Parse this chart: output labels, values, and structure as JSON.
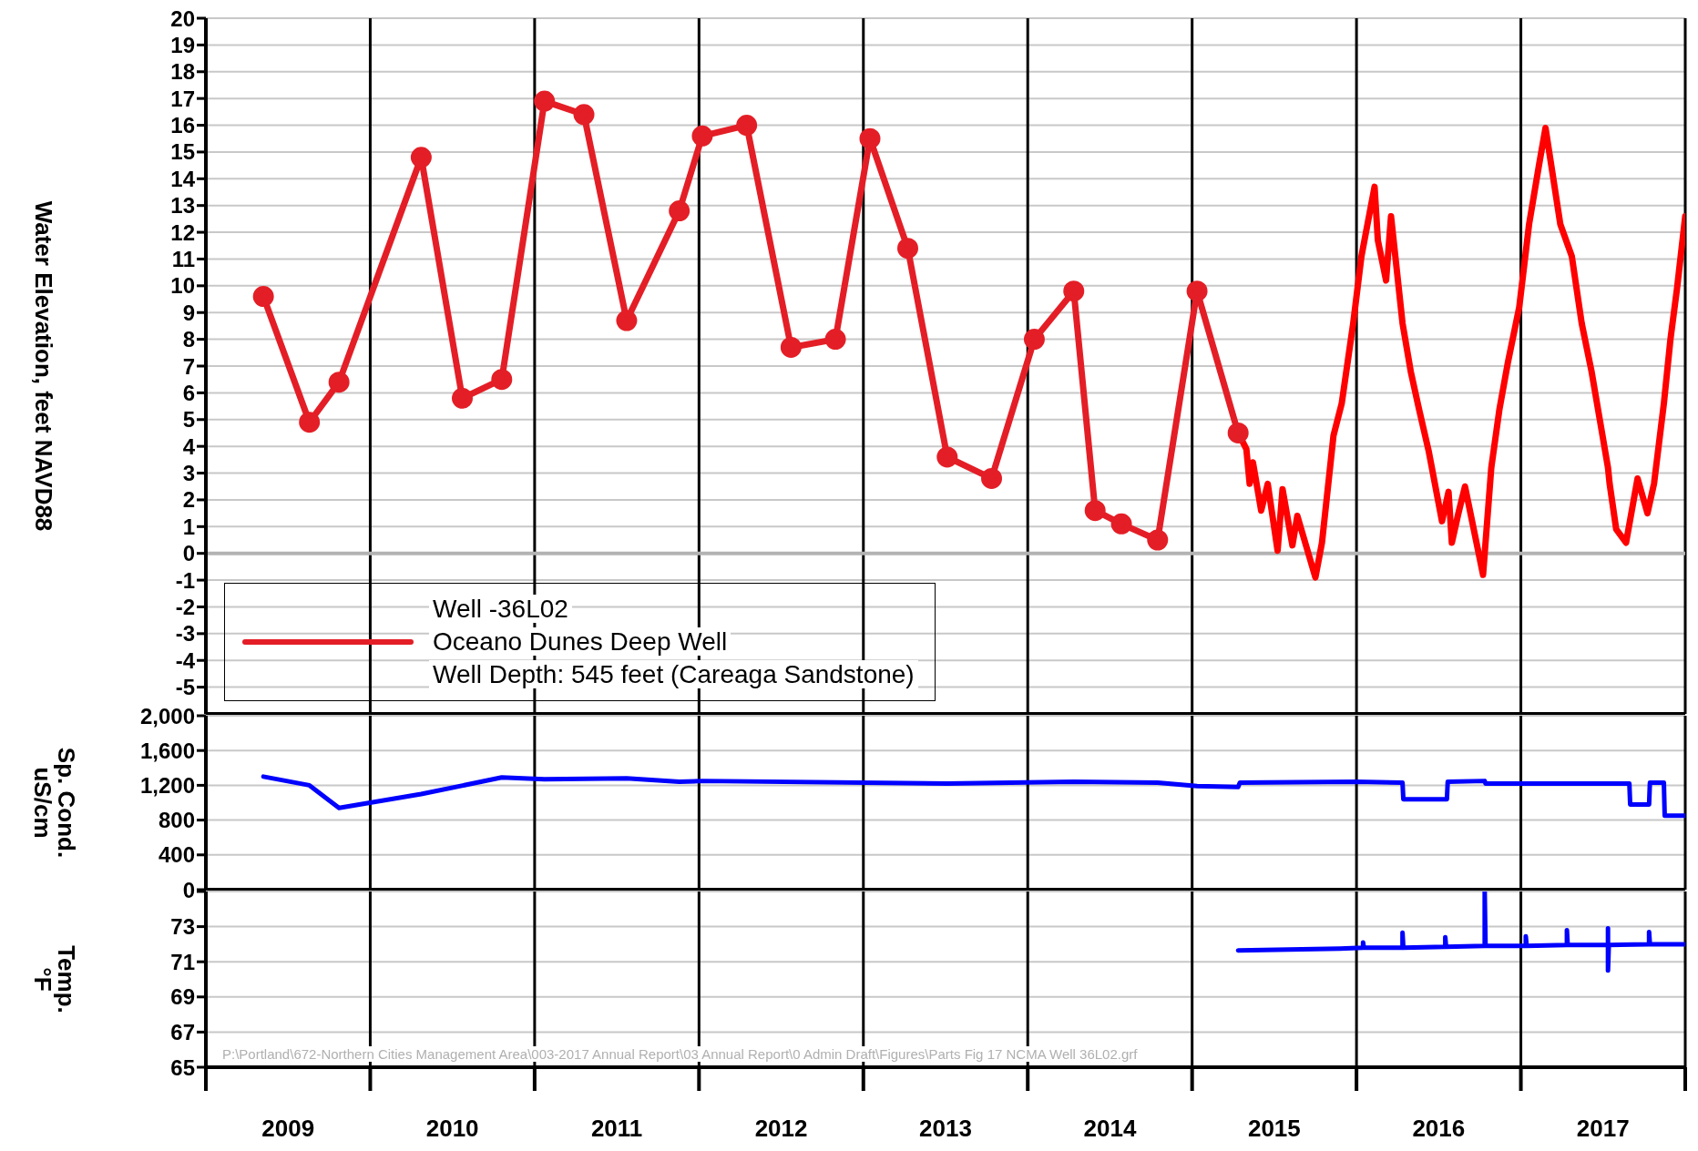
{
  "chart_data": [
    {
      "type": "line",
      "ylabel": "Water Elevation, feet NAVD88",
      "xlim": [
        2009,
        2018
      ],
      "ylim": [
        -6,
        20
      ],
      "xticks": [
        {
          "value": 2009,
          "label": null
        },
        {
          "value": 2010,
          "label": null
        },
        {
          "value": 2011,
          "label": null
        },
        {
          "value": 2012,
          "label": null
        },
        {
          "value": 2013,
          "label": null
        },
        {
          "value": 2014,
          "label": null
        },
        {
          "value": 2015,
          "label": null
        },
        {
          "value": 2016,
          "label": null
        },
        {
          "value": 2017,
          "label": null
        },
        {
          "value": 2018,
          "label": null
        }
      ],
      "yticks": [
        -5,
        -4,
        -3,
        -2,
        -1,
        0,
        1,
        2,
        3,
        4,
        5,
        6,
        7,
        8,
        9,
        10,
        11,
        12,
        13,
        14,
        15,
        16,
        17,
        18,
        19,
        20
      ],
      "grid": true,
      "tick_labels": "y",
      "legend": "bottom left",
      "ref_lines": [
        {
          "axis": "y",
          "value": 0,
          "color": "#b3b3b3"
        }
      ],
      "series": [
        {
          "name": "Well -36L02\nOceano Dunes Deep Well\nWell Depth: 545 feet (Careaga Sandstone)",
          "color": "#e41e26",
          "marker": "circle",
          "x": [
            2009.35,
            2009.63,
            2009.81,
            2010.31,
            2010.56,
            2010.8,
            2011.06,
            2011.3,
            2011.56,
            2011.88,
            2012.02,
            2012.29,
            2012.56,
            2012.83,
            2013.04,
            2013.27,
            2013.51,
            2013.78,
            2014.04,
            2014.28,
            2014.41,
            2014.57,
            2014.79,
            2015.03,
            2015.28
          ],
          "values": [
            9.6,
            4.9,
            6.4,
            14.8,
            5.8,
            6.5,
            16.9,
            16.4,
            8.7,
            12.8,
            15.6,
            16.0,
            7.7,
            8.0,
            15.5,
            11.4,
            3.6,
            2.8,
            8.0,
            9.8,
            1.6,
            1.1,
            0.5,
            9.8,
            4.5
          ]
        },
        {
          "color": "#ff0000",
          "marker": "none",
          "x": [
            2015.28,
            2015.33,
            2015.35,
            2015.37,
            2015.42,
            2015.46,
            2015.52,
            2015.55,
            2015.61,
            2015.64,
            2015.75,
            2015.79,
            2015.86,
            2015.91,
            2015.98,
            2016.03,
            2016.11,
            2016.13,
            2016.18,
            2016.21,
            2016.28,
            2016.33,
            2016.38,
            2016.44,
            2016.52,
            2016.56,
            2016.58,
            2016.62,
            2016.66,
            2016.77,
            2016.82,
            2016.87,
            2016.92,
            2016.99,
            2017.05,
            2017.11,
            2017.15,
            2017.19,
            2017.24,
            2017.31,
            2017.37,
            2017.43,
            2017.48,
            2017.53,
            2017.54,
            2017.58,
            2017.64,
            2017.71,
            2017.77,
            2017.81,
            2017.87,
            2017.91,
            2017.95,
            2018.0
          ],
          "values": [
            4.5,
            3.9,
            2.6,
            3.4,
            1.6,
            2.6,
            0.1,
            2.4,
            0.3,
            1.4,
            -0.9,
            0.4,
            4.4,
            5.6,
            8.6,
            11.1,
            13.7,
            11.7,
            10.2,
            12.6,
            8.6,
            6.8,
            5.4,
            3.8,
            1.2,
            2.3,
            0.4,
            1.5,
            2.5,
            -0.8,
            3.2,
            5.4,
            7.1,
            9.2,
            12.3,
            14.5,
            15.9,
            14.3,
            12.3,
            11.1,
            8.6,
            6.8,
            5.0,
            3.2,
            2.6,
            0.9,
            0.4,
            2.8,
            1.5,
            2.6,
            5.6,
            8.0,
            9.9,
            12.6
          ]
        }
      ]
    },
    {
      "type": "line",
      "ylabel": "Sp. Cond.\nuS/cm",
      "xlim": [
        2009,
        2018
      ],
      "ylim": [
        0,
        2000
      ],
      "xticks": [
        {
          "value": 2009,
          "label": null
        },
        {
          "value": 2010,
          "label": null
        },
        {
          "value": 2011,
          "label": null
        },
        {
          "value": 2012,
          "label": null
        },
        {
          "value": 2013,
          "label": null
        },
        {
          "value": 2014,
          "label": null
        },
        {
          "value": 2015,
          "label": null
        },
        {
          "value": 2016,
          "label": null
        },
        {
          "value": 2017,
          "label": null
        },
        {
          "value": 2018,
          "label": null
        }
      ],
      "yticks": [
        0,
        400,
        800,
        {
          "value": 1200,
          "label": "1,200"
        },
        {
          "value": 1600,
          "label": "1,600"
        },
        {
          "value": 2000,
          "label": "2,000"
        }
      ],
      "grid": true,
      "tick_labels": "y",
      "series": [
        {
          "color": "#0000ff",
          "marker": "none",
          "x": [
            2009.35,
            2009.63,
            2009.81,
            2010.31,
            2010.8,
            2011.06,
            2011.56,
            2011.88,
            2012.02,
            2013.51,
            2014.28,
            2014.79,
            2015.03,
            2015.28,
            2015.29,
            2016.0,
            2016.28,
            2016.285,
            2016.55,
            2016.555,
            2016.78,
            2016.785,
            2017.66,
            2017.665,
            2017.78,
            2017.785,
            2017.87,
            2017.875,
            2018.0
          ],
          "values": [
            1300,
            1200,
            940,
            1100,
            1290,
            1270,
            1280,
            1240,
            1250,
            1220,
            1240,
            1230,
            1190,
            1180,
            1230,
            1240,
            1230,
            1040,
            1040,
            1240,
            1250,
            1220,
            1220,
            980,
            980,
            1230,
            1230,
            850,
            850
          ]
        }
      ]
    },
    {
      "type": "line",
      "ylabel": "Temp.\n°F",
      "xlim": [
        2009,
        2018
      ],
      "ylim": [
        65,
        75
      ],
      "xticks": [
        {
          "value": 2009,
          "label": null
        },
        {
          "value": 2009.5,
          "label": "2009"
        },
        {
          "value": 2010,
          "label": null
        },
        {
          "value": 2010.5,
          "label": "2010"
        },
        {
          "value": 2011,
          "label": null
        },
        {
          "value": 2011.5,
          "label": "2011"
        },
        {
          "value": 2012,
          "label": null
        },
        {
          "value": 2012.5,
          "label": "2012"
        },
        {
          "value": 2013,
          "label": null
        },
        {
          "value": 2013.5,
          "label": "2013"
        },
        {
          "value": 2014,
          "label": null
        },
        {
          "value": 2014.5,
          "label": "2014"
        },
        {
          "value": 2015,
          "label": null
        },
        {
          "value": 2015.5,
          "label": "2015"
        },
        {
          "value": 2016,
          "label": null
        },
        {
          "value": 2016.5,
          "label": "2016"
        },
        {
          "value": 2017,
          "label": null
        },
        {
          "value": 2017.5,
          "label": "2017"
        },
        {
          "value": 2018,
          "label": null
        }
      ],
      "yticks": [
        65,
        67,
        69,
        71,
        73,
        {
          "value": 75,
          "label": null
        }
      ],
      "grid": true,
      "annotations": [
        "P:\\Portland\\672-Northern Cities Management Area\\003-2017 Annual Report\\03 Annual Report\\0 Admin Draft\\Figures\\Parts Fig 17 NCMA Well 36L02.grf"
      ],
      "series": [
        {
          "color": "#0000ff",
          "marker": "none",
          "x": [
            2015.28,
            2015.9,
            2016.04,
            2016.04,
            2016.045,
            2016.28,
            2016.28,
            2016.285,
            2016.54,
            2016.54,
            2016.545,
            2016.78,
            2016.78,
            2016.785,
            2017.03,
            2017.03,
            2017.035,
            2017.28,
            2017.28,
            2017.285,
            2017.53,
            2017.53,
            2017.53,
            2017.535,
            2017.78,
            2017.78,
            2017.785,
            2018.0
          ],
          "values": [
            71.65,
            71.75,
            71.8,
            72.1,
            71.8,
            71.8,
            72.65,
            71.8,
            71.85,
            72.4,
            71.85,
            71.9,
            75,
            71.9,
            71.9,
            72.45,
            71.9,
            71.95,
            72.8,
            71.95,
            71.95,
            72.9,
            70.5,
            71.95,
            72.0,
            72.7,
            72.0,
            72.0
          ]
        }
      ]
    }
  ]
}
